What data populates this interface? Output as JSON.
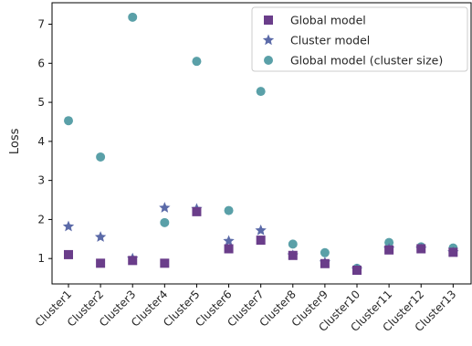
{
  "chart_data": {
    "type": "scatter",
    "title": "",
    "xlabel": "",
    "ylabel": "Loss",
    "ylim": [
      0.35,
      7.55
    ],
    "yticks": [
      1,
      2,
      3,
      4,
      5,
      6,
      7
    ],
    "grid": false,
    "legend_position": "top-right",
    "categories": [
      "Cluster1",
      "Cluster2",
      "Cluster3",
      "Cluster4",
      "Cluster5",
      "Cluster6",
      "Cluster7",
      "Cluster8",
      "Cluster9",
      "Cluster10",
      "Cluster11",
      "Cluster12",
      "Cluster13"
    ],
    "series": [
      {
        "name": "Global model",
        "marker": "square",
        "color": "#6a3d8a",
        "values": [
          1.1,
          0.88,
          0.95,
          0.88,
          2.2,
          1.25,
          1.47,
          1.08,
          0.87,
          0.7,
          1.22,
          1.25,
          1.16
        ]
      },
      {
        "name": "Cluster model",
        "marker": "star",
        "color": "#5b6aa8",
        "values": [
          1.82,
          1.55,
          1.0,
          2.3,
          2.27,
          1.45,
          1.72,
          1.08,
          0.9,
          0.72,
          1.25,
          1.25,
          1.16
        ]
      },
      {
        "name": "Global model (cluster size)",
        "marker": "circle",
        "color": "#5aa0a8",
        "values": [
          4.53,
          3.6,
          7.18,
          1.92,
          6.05,
          2.23,
          5.28,
          1.37,
          1.15,
          0.75,
          1.41,
          1.3,
          1.27
        ]
      }
    ]
  }
}
